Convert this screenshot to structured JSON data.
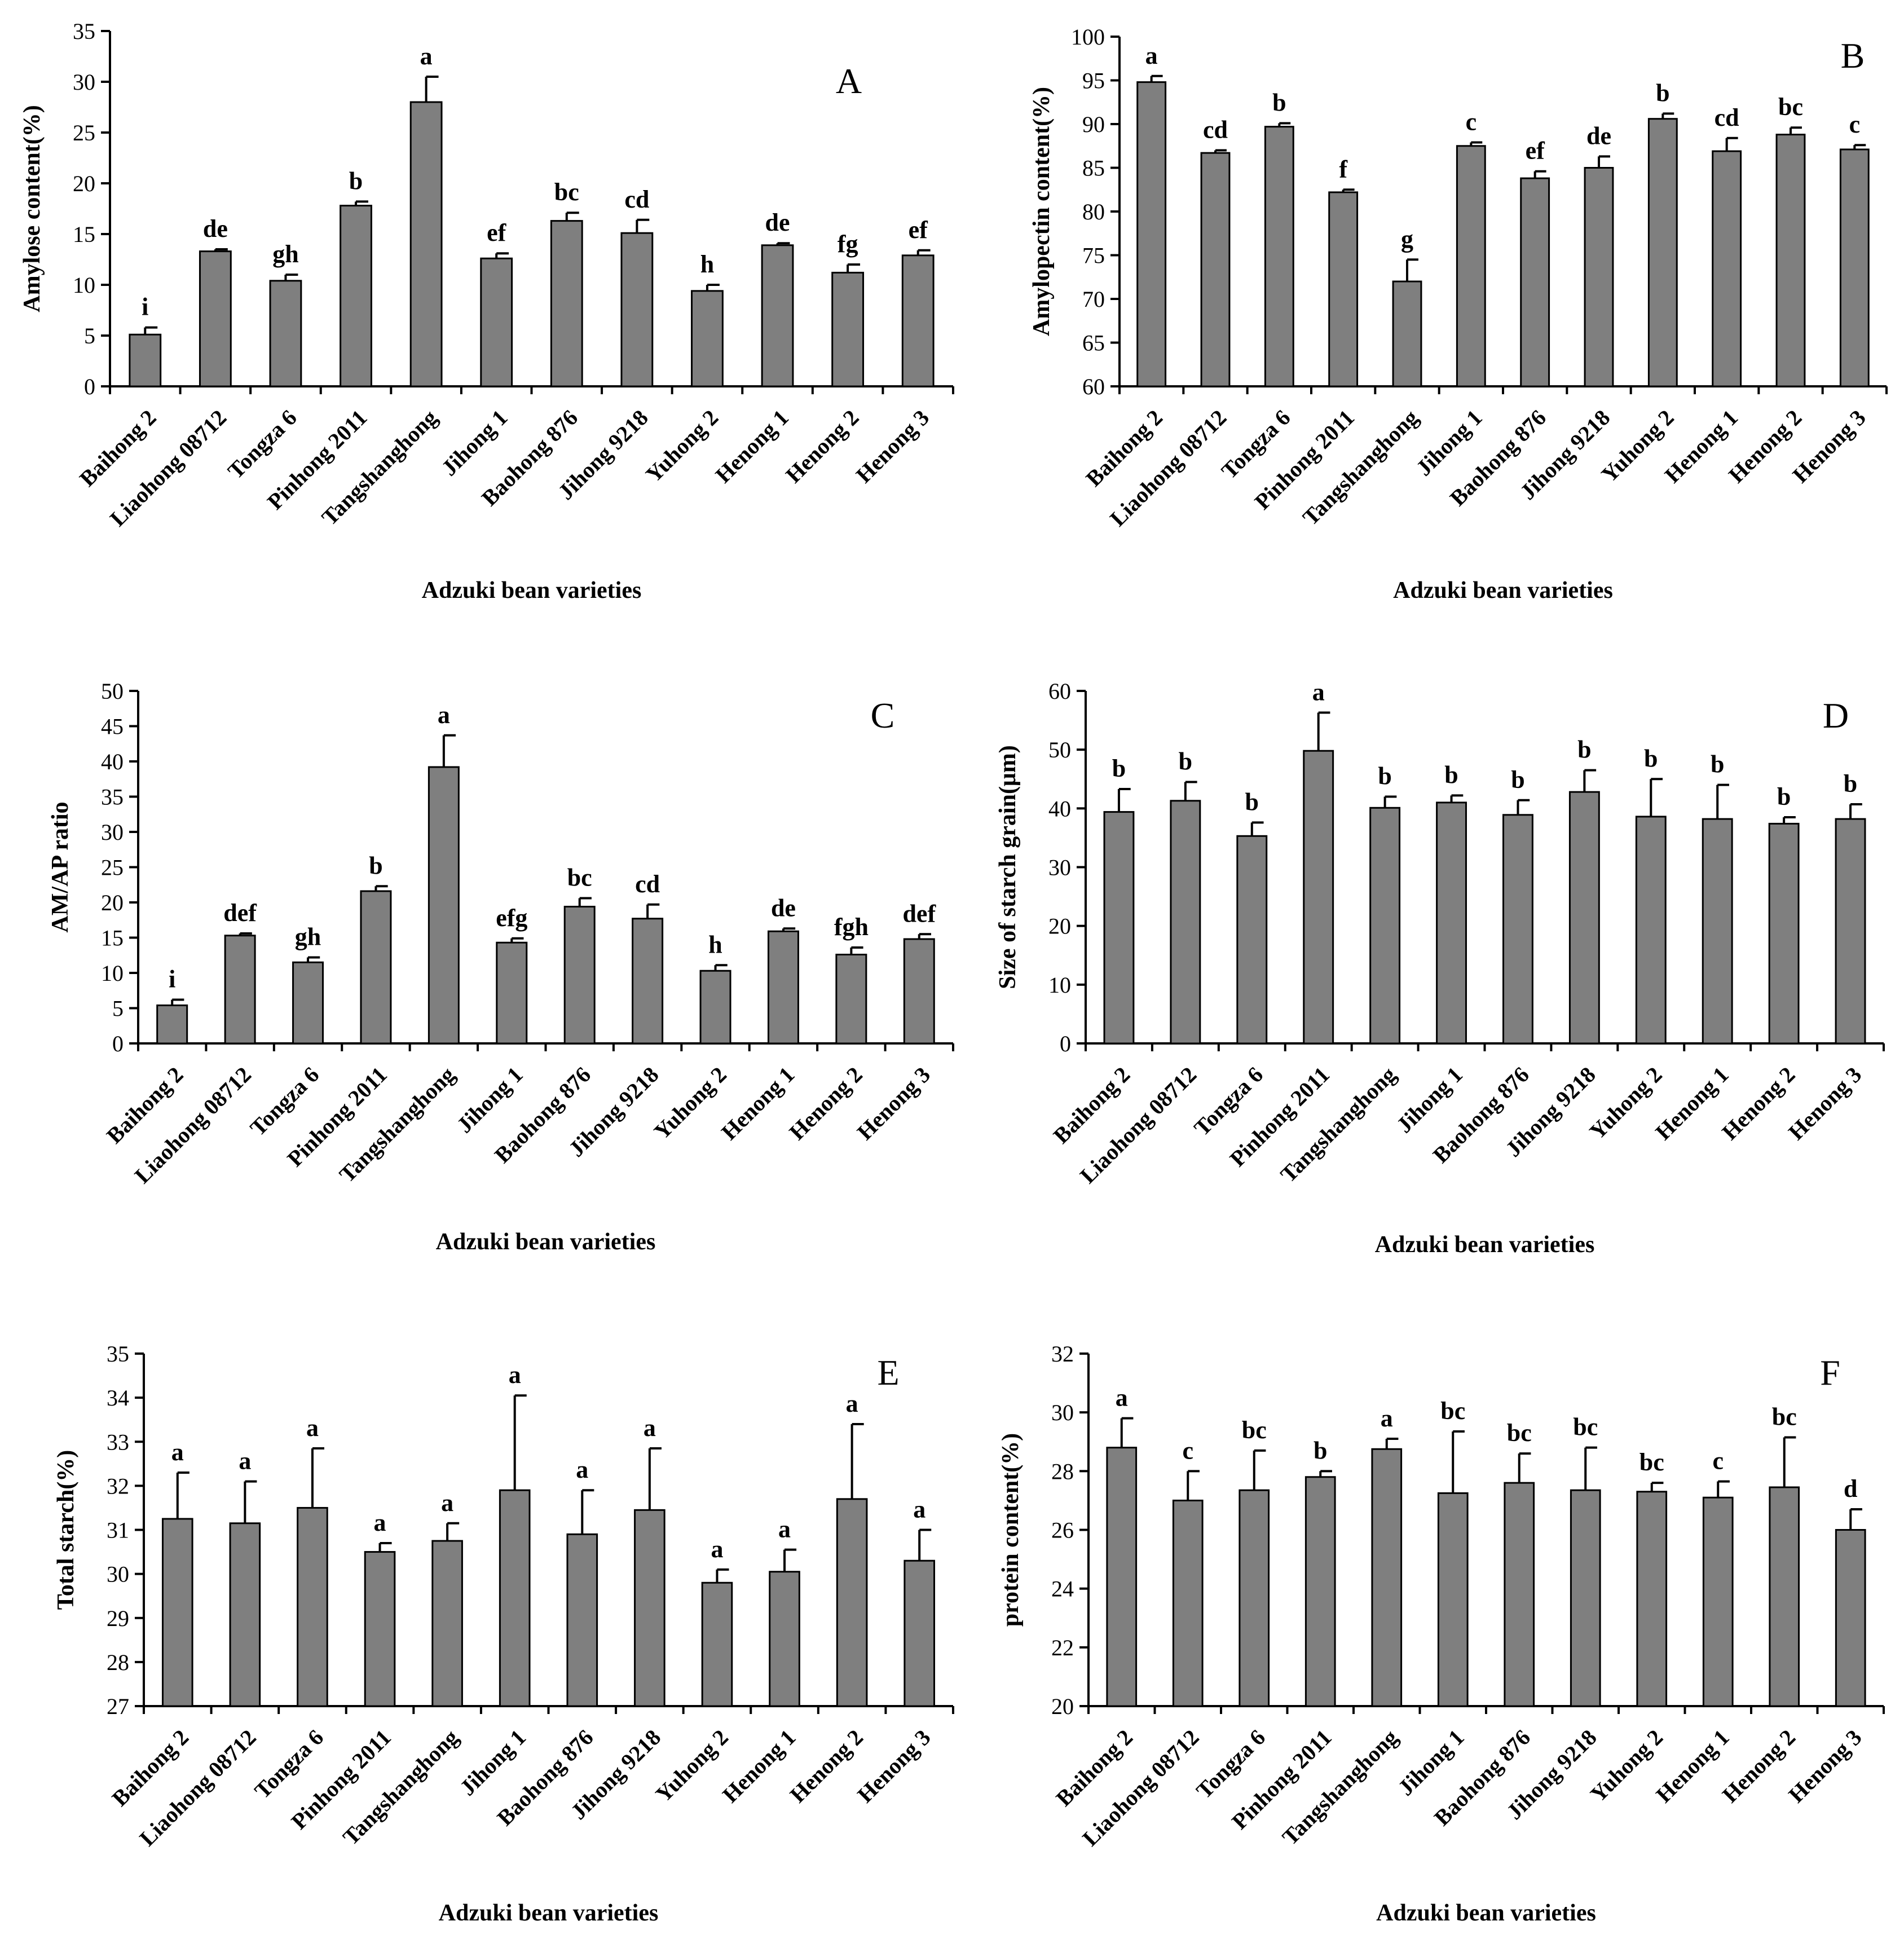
{
  "chart_data": [
    {
      "type": "bar",
      "panel": "A",
      "ylabel": "Amylose content(%)",
      "xlabel": "Adzuki bean varieties",
      "ylim": [
        0,
        35
      ],
      "yticks": [
        0,
        5,
        10,
        15,
        20,
        25,
        30,
        35
      ],
      "categories": [
        "Baihong 2",
        "Liaohong 08712",
        "Tongza 6",
        "Pinhong 2011",
        "Tangshanghong",
        "Jihong 1",
        "Baohong 876",
        "Jihong 9218",
        "Yuhong 2",
        "Henong 1",
        "Henong 2",
        "Henong 3"
      ],
      "values": [
        5.1,
        13.3,
        10.4,
        17.8,
        28.0,
        12.6,
        16.3,
        15.1,
        9.4,
        13.9,
        11.2,
        12.9
      ],
      "errors": [
        0.7,
        0.2,
        0.6,
        0.4,
        2.5,
        0.5,
        0.8,
        1.3,
        0.6,
        0.2,
        0.8,
        0.5
      ],
      "sig": [
        "i",
        "de",
        "gh",
        "b",
        "a",
        "ef",
        "bc",
        "cd",
        "h",
        "de",
        "fg",
        "ef"
      ]
    },
    {
      "type": "bar",
      "panel": "B",
      "ylabel": "Amylopectin content(%)",
      "xlabel": "Adzuki bean varieties",
      "ylim": [
        60,
        100
      ],
      "yticks": [
        60,
        65,
        70,
        75,
        80,
        85,
        90,
        95,
        100
      ],
      "categories": [
        "Baihong 2",
        "Liaohong 08712",
        "Tongza 6",
        "Pinhong 2011",
        "Tangshanghong",
        "Jihong 1",
        "Baohong 876",
        "Jihong 9218",
        "Yuhong 2",
        "Henong 1",
        "Henong 2",
        "Henong 3"
      ],
      "values": [
        94.8,
        86.7,
        89.7,
        82.2,
        72.0,
        87.5,
        83.8,
        85.0,
        90.6,
        86.9,
        88.8,
        87.1
      ],
      "errors": [
        0.7,
        0.3,
        0.4,
        0.3,
        2.5,
        0.4,
        0.8,
        1.3,
        0.6,
        1.5,
        0.8,
        0.5
      ],
      "sig": [
        "a",
        "cd",
        "b",
        "f",
        "g",
        "c",
        "ef",
        "de",
        "b",
        "cd",
        "bc",
        "c"
      ]
    },
    {
      "type": "bar",
      "panel": "C",
      "ylabel": "AM/AP ratio",
      "xlabel": "Adzuki bean varieties",
      "ylim": [
        0,
        50
      ],
      "yticks": [
        0,
        5,
        10,
        15,
        20,
        25,
        30,
        35,
        40,
        45,
        50
      ],
      "categories": [
        "Baihong 2",
        "Liaohong 08712",
        "Tongza 6",
        "Pinhong 2011",
        "Tangshanghong",
        "Jihong 1",
        "Baohong 876",
        "Jihong 9218",
        "Yuhong 2",
        "Henong 1",
        "Henong 2",
        "Henong 3"
      ],
      "values": [
        5.4,
        15.3,
        11.5,
        21.6,
        39.2,
        14.3,
        19.4,
        17.7,
        10.3,
        15.9,
        12.6,
        14.8
      ],
      "errors": [
        0.8,
        0.3,
        0.7,
        0.7,
        4.5,
        0.6,
        1.2,
        2.0,
        0.8,
        0.4,
        1.0,
        0.7
      ],
      "sig": [
        "i",
        "def",
        "gh",
        "b",
        "a",
        "efg",
        "bc",
        "cd",
        "h",
        "de",
        "fgh",
        "def"
      ]
    },
    {
      "type": "bar",
      "panel": "D",
      "ylabel": "Size of starch grain(μm)",
      "xlabel": "Adzuki bean varieties",
      "ylim": [
        0,
        60
      ],
      "yticks": [
        0,
        10,
        20,
        30,
        40,
        50,
        60
      ],
      "categories": [
        "Baihong 2",
        "Liaohong 08712",
        "Tongza 6",
        "Pinhong 2011",
        "Tangshanghong",
        "Jihong 1",
        "Baohong 876",
        "Jihong 9218",
        "Yuhong 2",
        "Henong 1",
        "Henong 2",
        "Henong 3"
      ],
      "values": [
        39.4,
        41.3,
        35.3,
        49.8,
        40.1,
        41.0,
        38.9,
        42.8,
        38.6,
        38.2,
        37.4,
        38.2
      ],
      "errors": [
        3.9,
        3.2,
        2.3,
        6.5,
        1.9,
        1.2,
        2.5,
        3.7,
        6.4,
        5.8,
        1.1,
        2.5
      ],
      "sig": [
        "b",
        "b",
        "b",
        "a",
        "b",
        "b",
        "b",
        "b",
        "b",
        "b",
        "b",
        "b"
      ]
    },
    {
      "type": "bar",
      "panel": "E",
      "ylabel": "Total starch(%)",
      "xlabel": "Adzuki bean varieties",
      "ylim": [
        27,
        35
      ],
      "yticks": [
        27,
        28,
        29,
        30,
        31,
        32,
        33,
        34,
        35
      ],
      "categories": [
        "Baihong 2",
        "Liaohong 08712",
        "Tongza 6",
        "Pinhong 2011",
        "Tangshanghong",
        "Jihong 1",
        "Baohong 876",
        "Jihong 9218",
        "Yuhong 2",
        "Henong 1",
        "Henong 2",
        "Henong 3"
      ],
      "values": [
        31.25,
        31.15,
        31.5,
        30.5,
        30.75,
        31.9,
        30.9,
        31.45,
        29.8,
        30.05,
        31.7,
        30.3
      ],
      "errors": [
        1.05,
        0.95,
        1.35,
        0.2,
        0.4,
        2.15,
        1.0,
        1.4,
        0.3,
        0.5,
        1.7,
        0.7
      ],
      "sig": [
        "a",
        "a",
        "a",
        "a",
        "a",
        "a",
        "a",
        "a",
        "a",
        "a",
        "a",
        "a"
      ]
    },
    {
      "type": "bar",
      "panel": "F",
      "ylabel": "protein content(%)",
      "xlabel": "Adzuki bean varieties",
      "ylim": [
        20,
        32
      ],
      "yticks": [
        20,
        22,
        24,
        26,
        28,
        30,
        32
      ],
      "categories": [
        "Baihong 2",
        "Liaohong 08712",
        "Tongza 6",
        "Pinhong 2011",
        "Tangshanghong",
        "Jihong 1",
        "Baohong 876",
        "Jihong 9218",
        "Yuhong 2",
        "Henong 1",
        "Henong 2",
        "Henong 3"
      ],
      "values": [
        28.8,
        27.0,
        27.35,
        27.8,
        28.75,
        27.25,
        27.6,
        27.35,
        27.3,
        27.1,
        27.45,
        26.0
      ],
      "errors": [
        1.0,
        1.0,
        1.35,
        0.2,
        0.35,
        2.1,
        1.0,
        1.45,
        0.3,
        0.55,
        1.7,
        0.7
      ],
      "sig": [
        "a",
        "c",
        "bc",
        "b",
        "a",
        "bc",
        "bc",
        "bc",
        "bc",
        "c",
        "bc",
        "d"
      ]
    }
  ]
}
